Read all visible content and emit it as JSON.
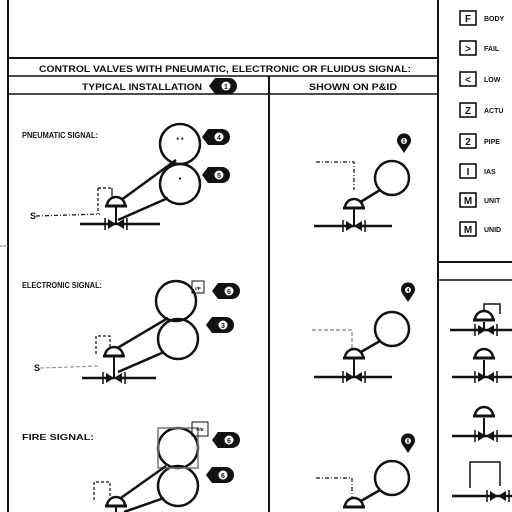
{
  "header": {
    "title": "CONTROL VALVES WITH PNEUMATIC, ELECTRONIC OR FLUIDUS SIGNAL:",
    "col_left": "TYPICAL INSTALLATION",
    "col_left_badge": "1",
    "col_right": "SHOWN ON P&ID"
  },
  "sections": [
    {
      "label": "PNEUMATIC SIGNAL:",
      "inst_badges": [
        "4",
        "5"
      ],
      "pid_badge": "6",
      "extra_tag": ""
    },
    {
      "label": "ELECTRONIC SIGNAL:",
      "inst_badges": [
        "6",
        "3"
      ],
      "pid_badge": "4",
      "extra_tag": "I/P"
    },
    {
      "label": "FIRE SIGNAL:",
      "inst_badges": [
        "6",
        "6"
      ],
      "pid_badge": "6",
      "extra_tag": "P/E"
    }
  ],
  "legend": [
    {
      "symbol": "F",
      "label": "BODY"
    },
    {
      "symbol": ">",
      "label": "FAIL"
    },
    {
      "symbol": "<",
      "label": "LOW"
    },
    {
      "symbol": "Z",
      "label": "ACTU"
    },
    {
      "symbol": "2",
      "label": "PIPE"
    },
    {
      "symbol": "I",
      "label": "IAS"
    },
    {
      "symbol": "M",
      "label": "UNIT"
    },
    {
      "symbol": "M",
      "label": "UNID"
    }
  ],
  "colors": {
    "ink": "#111111",
    "signal_gray": "#9a9a9a"
  }
}
